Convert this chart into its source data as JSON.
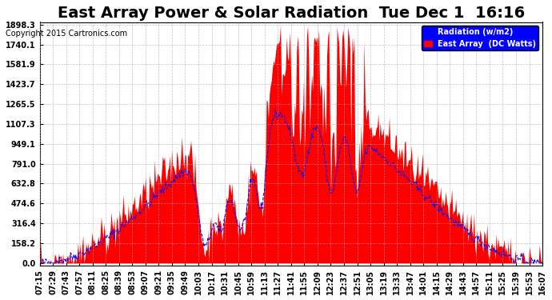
{
  "title": "East Array Power & Solar Radiation  Tue Dec 1  16:16",
  "copyright": "Copyright 2015 Cartronics.com",
  "legend_labels": [
    "Radiation (w/m2)",
    "East Array  (DC Watts)"
  ],
  "legend_colors": [
    "blue",
    "red"
  ],
  "y_tick_values": [
    0.0,
    158.2,
    316.4,
    474.6,
    632.8,
    791.0,
    949.1,
    1107.3,
    1265.5,
    1423.7,
    1581.9,
    1740.1,
    1898.3
  ],
  "y_max": 1898.3,
  "y_min": 0.0,
  "background_color": "#ffffff",
  "plot_bg_color": "#ffffff",
  "grid_color": "#aaaaaa",
  "title_fontsize": 14,
  "tick_label_fontsize": 7,
  "x_tick_labels": [
    "07:15",
    "07:29",
    "07:43",
    "07:57",
    "08:11",
    "08:25",
    "08:39",
    "08:53",
    "09:07",
    "09:21",
    "09:35",
    "09:49",
    "10:03",
    "10:17",
    "10:31",
    "10:45",
    "10:59",
    "11:13",
    "11:27",
    "11:41",
    "11:55",
    "12:09",
    "12:23",
    "12:37",
    "12:51",
    "13:05",
    "13:19",
    "13:33",
    "13:47",
    "14:01",
    "14:15",
    "14:29",
    "14:43",
    "14:57",
    "15:11",
    "15:25",
    "15:39",
    "15:53",
    "16:07"
  ],
  "n_points": 500,
  "seed": 42
}
